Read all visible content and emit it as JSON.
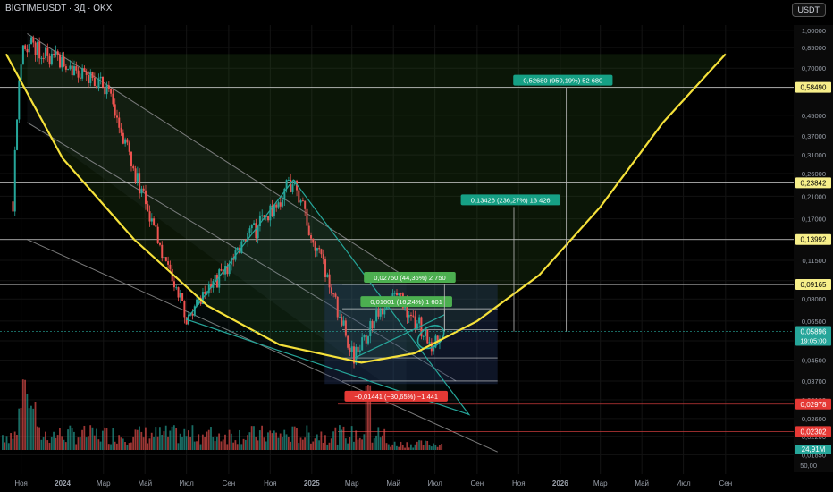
{
  "header": {
    "symbol_line": "BIGTIMEUSDT · 3Д · OKX",
    "currency": "USDT"
  },
  "chart_data": {
    "type": "candlestick",
    "y_scale": "log",
    "ylim": [
      0.0165,
      1.05
    ],
    "xlim": [
      "2023-10-01",
      "2026-12-10"
    ],
    "y_ticks": [
      "1,00000",
      "0,85000",
      "0,70000",
      "0,58000",
      "0,45000",
      "0,37000",
      "0,31000",
      "0,26000",
      "0,21000",
      "0,17000",
      "0,14000",
      "0,11500",
      "0,09500",
      "0,08000",
      "0,06500",
      "0,05400",
      "0,04500",
      "0,03700",
      "0,03100",
      "0,02600",
      "0,02200",
      "0,01850"
    ],
    "volume_axis_label": "50,00",
    "x_ticks": [
      "Ноя",
      "2024",
      "Мар",
      "Май",
      "Июл",
      "Сен",
      "Ноя",
      "2025",
      "Мар",
      "Май",
      "Июл",
      "Сен",
      "Ноя",
      "2026",
      "Мар",
      "Май",
      "Июл",
      "Сен"
    ],
    "price_lines": [
      {
        "label": "0,58490",
        "value": 0.5849
      },
      {
        "label": "0,23842",
        "value": 0.23842
      },
      {
        "label": "0,13992",
        "value": 0.13992
      },
      {
        "label": "0,09165",
        "value": 0.09165
      }
    ],
    "red_lines": [
      {
        "label": "0,02978",
        "value": 0.02978
      },
      {
        "label": "0,02302",
        "value": 0.02302
      }
    ],
    "current_price": {
      "label": "0,05896",
      "countdown": "19:05:00",
      "value": 0.05896
    },
    "volume_readout": "24,91M",
    "measurements": [
      {
        "text": "0,52680 (950,19%) 52 680",
        "value": 0.5849
      },
      {
        "text": "0,13426 (236,27%) 13 426",
        "value": 0.19
      },
      {
        "text": "0,02750 (44,36%) 2 750",
        "value": 0.09165
      },
      {
        "text": "0,01601 (16,24%) 1 601",
        "value": 0.073
      },
      {
        "text": "−0,01441 (−30,65%) −1 441",
        "value": 0.03
      }
    ],
    "key_points": [
      {
        "date": "2023-11-05",
        "price": 0.9
      },
      {
        "date": "2024-03-05",
        "price": 0.58
      },
      {
        "date": "2024-07-01",
        "price": 0.066
      },
      {
        "date": "2024-12-05",
        "price": 0.245
      },
      {
        "date": "2025-03-05",
        "price": 0.046
      },
      {
        "date": "2025-05-01",
        "price": 0.09
      },
      {
        "date": "2025-06-25",
        "price": 0.0525
      }
    ],
    "parabola_arc": [
      [
        "2023-10-10",
        0.8
      ],
      [
        "2024-01-01",
        0.3
      ],
      [
        "2024-04-15",
        0.14
      ],
      [
        "2024-08-01",
        0.075
      ],
      [
        "2024-11-15",
        0.052
      ],
      [
        "2025-03-15",
        0.044
      ],
      [
        "2025-06-01",
        0.048
      ],
      [
        "2025-09-01",
        0.065
      ],
      [
        "2025-12-01",
        0.1
      ],
      [
        "2026-03-01",
        0.19
      ],
      [
        "2026-06-01",
        0.42
      ],
      [
        "2026-09-01",
        0.8
      ]
    ],
    "colors": {
      "up": "#26a69a",
      "down": "#ef5350",
      "arc": "#f5e13a",
      "background": "#000000"
    }
  }
}
